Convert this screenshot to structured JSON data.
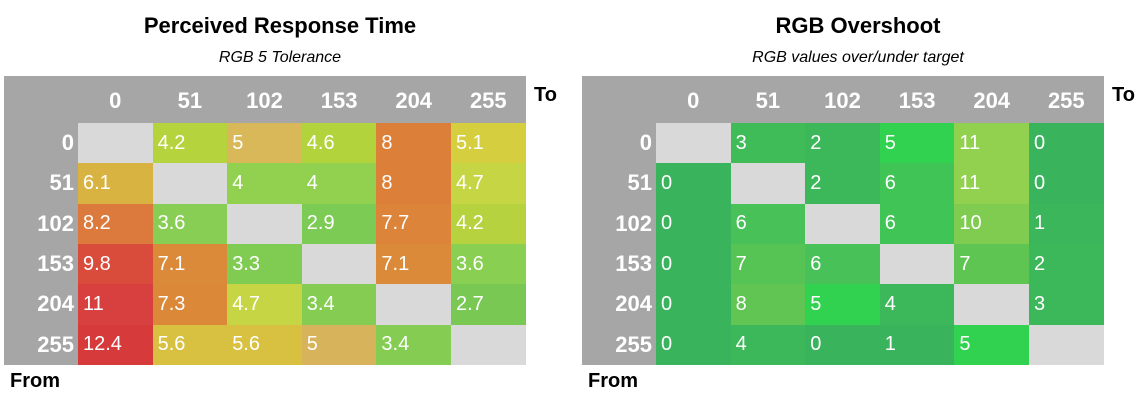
{
  "chart_data": [
    {
      "type": "heatmap",
      "title": "Perceived Response Time",
      "subtitle": "RGB 5 Tolerance",
      "x_categories": [
        "0",
        "51",
        "102",
        "153",
        "204",
        "255"
      ],
      "y_categories": [
        "0",
        "51",
        "102",
        "153",
        "204",
        "255"
      ],
      "xlabel": "To",
      "ylabel": "From",
      "values": [
        [
          null,
          4.2,
          5,
          4.6,
          8,
          5.1
        ],
        [
          6.1,
          null,
          4,
          4,
          8,
          4.7
        ],
        [
          8.2,
          3.6,
          null,
          2.9,
          7.7,
          4.2
        ],
        [
          9.8,
          7.1,
          3.3,
          null,
          7.1,
          3.6
        ],
        [
          11,
          7.3,
          4.7,
          3.4,
          null,
          2.7
        ],
        [
          12.4,
          5.6,
          5.6,
          5,
          3.4,
          null
        ]
      ],
      "cell_colors": [
        [
          null,
          "#b5d33c",
          "#d9b85a",
          "#b3d33c",
          "#dc7f38",
          "#d5cf3f"
        ],
        [
          "#d9b342",
          null,
          "#92d050",
          "#92d050",
          "#dc7f38",
          "#c6d544"
        ],
        [
          "#db7a3c",
          "#88ce54",
          null,
          "#7ccb54",
          "#db843a",
          "#b6d33f"
        ],
        [
          "#d94c3c",
          "#db8a3a",
          "#80cc52",
          null,
          "#db8a3a",
          "#88cf52"
        ],
        [
          "#d84040",
          "#db8938",
          "#c6d544",
          "#84cd52",
          null,
          "#78c853"
        ],
        [
          "#d63a3a",
          "#d8c140",
          "#d8c140",
          "#d7b35c",
          "#84cd52",
          null
        ]
      ],
      "labels": [
        [
          "",
          "4.2",
          "5",
          "4.6",
          "8",
          "5.1"
        ],
        [
          "6.1",
          "",
          "4",
          "4",
          "8",
          "4.7"
        ],
        [
          "8.2",
          "3.6",
          "",
          "2.9",
          "7.7",
          "4.2"
        ],
        [
          "9.8",
          "7.1",
          "3.3",
          "",
          "7.1",
          "3.6"
        ],
        [
          "11",
          "7.3",
          "4.7",
          "3.4",
          "",
          "2.7"
        ],
        [
          "12.4",
          "5.6",
          "5.6",
          "5",
          "3.4",
          ""
        ]
      ]
    },
    {
      "type": "heatmap",
      "title": "RGB Overshoot",
      "subtitle": "RGB values over/under target",
      "x_categories": [
        "0",
        "51",
        "102",
        "153",
        "204",
        "255"
      ],
      "y_categories": [
        "0",
        "51",
        "102",
        "153",
        "204",
        "255"
      ],
      "xlabel": "To",
      "ylabel": "From",
      "values": [
        [
          null,
          3,
          2,
          5,
          11,
          0
        ],
        [
          0,
          null,
          2,
          6,
          11,
          0
        ],
        [
          0,
          6,
          null,
          6,
          10,
          1
        ],
        [
          0,
          7,
          6,
          null,
          7,
          2
        ],
        [
          0,
          8,
          5,
          4,
          null,
          3
        ],
        [
          0,
          4,
          0,
          1,
          5,
          null
        ]
      ],
      "cell_colors": [
        [
          null,
          "#3fbb58",
          "#3cb85a",
          "#30d24f",
          "#92d050",
          "#3ab35d"
        ],
        [
          "#3ab35d",
          null,
          "#3cb85a",
          "#40c456",
          "#92d050",
          "#3ab35d"
        ],
        [
          "#3ab35d",
          "#48c258",
          null,
          "#40c456",
          "#7fcc50",
          "#3cb65b"
        ],
        [
          "#3ab35d",
          "#56c454",
          "#48c258",
          null,
          "#5ec452",
          "#3cb85a"
        ],
        [
          "#3ab35d",
          "#60c552",
          "#30d24f",
          "#3cb85a",
          null,
          "#3cb85a"
        ],
        [
          "#3ab35d",
          "#3cb85a",
          "#3ab35d",
          "#3ab35d",
          "#30d24f",
          null
        ]
      ],
      "labels": [
        [
          "",
          "3",
          "2",
          "5",
          "11",
          "0"
        ],
        [
          "0",
          "",
          "2",
          "6",
          "11",
          "0"
        ],
        [
          "0",
          "6",
          "",
          "6",
          "10",
          "1"
        ],
        [
          "0",
          "7",
          "6",
          "",
          "7",
          "2"
        ],
        [
          "0",
          "8",
          "5",
          "4",
          "",
          "3"
        ],
        [
          "0",
          "4",
          "0",
          "1",
          "5",
          ""
        ]
      ]
    }
  ],
  "colors": {
    "header_bg": "#a6a6a6",
    "diagonal": "#d9d9d9",
    "text_white": "#ffffff"
  }
}
